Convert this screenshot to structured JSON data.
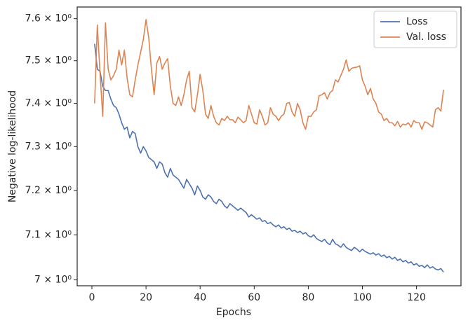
{
  "chart_data": {
    "type": "line",
    "xlabel": "Epochs",
    "ylabel": "Negative log-likelihood",
    "x": [
      1,
      2,
      3,
      4,
      5,
      6,
      7,
      8,
      9,
      10,
      11,
      12,
      13,
      14,
      15,
      16,
      17,
      18,
      19,
      20,
      21,
      22,
      23,
      24,
      25,
      26,
      27,
      28,
      29,
      30,
      31,
      32,
      33,
      34,
      35,
      36,
      37,
      38,
      39,
      40,
      41,
      42,
      43,
      44,
      45,
      46,
      47,
      48,
      49,
      50,
      51,
      52,
      53,
      54,
      55,
      56,
      57,
      58,
      59,
      60,
      61,
      62,
      63,
      64,
      65,
      66,
      67,
      68,
      69,
      70,
      71,
      72,
      73,
      74,
      75,
      76,
      77,
      78,
      79,
      80,
      81,
      82,
      83,
      84,
      85,
      86,
      87,
      88,
      89,
      90,
      91,
      92,
      93,
      94,
      95,
      96,
      97,
      98,
      99,
      100,
      101,
      102,
      103,
      104,
      105,
      106,
      107,
      108,
      109,
      110,
      111,
      112,
      113,
      114,
      115,
      116,
      117,
      118,
      119,
      120,
      121,
      122,
      123,
      124,
      125,
      126,
      127,
      128,
      129,
      130
    ],
    "series": [
      {
        "name": "Loss",
        "color": "#4c72b0",
        "values": [
          7.54,
          7.48,
          7.475,
          7.44,
          7.43,
          7.43,
          7.41,
          7.395,
          7.39,
          7.375,
          7.355,
          7.34,
          7.345,
          7.32,
          7.335,
          7.33,
          7.3,
          7.285,
          7.3,
          7.29,
          7.275,
          7.27,
          7.265,
          7.25,
          7.265,
          7.26,
          7.24,
          7.23,
          7.25,
          7.235,
          7.23,
          7.225,
          7.215,
          7.205,
          7.225,
          7.215,
          7.205,
          7.19,
          7.21,
          7.2,
          7.185,
          7.18,
          7.19,
          7.185,
          7.175,
          7.17,
          7.18,
          7.175,
          7.165,
          7.16,
          7.17,
          7.165,
          7.16,
          7.155,
          7.16,
          7.155,
          7.15,
          7.14,
          7.145,
          7.14,
          7.135,
          7.138,
          7.13,
          7.132,
          7.125,
          7.128,
          7.122,
          7.118,
          7.122,
          7.115,
          7.118,
          7.112,
          7.115,
          7.108,
          7.11,
          7.105,
          7.108,
          7.102,
          7.105,
          7.098,
          7.095,
          7.1,
          7.092,
          7.088,
          7.085,
          7.09,
          7.082,
          7.078,
          7.09,
          7.08,
          7.077,
          7.072,
          7.08,
          7.072,
          7.068,
          7.065,
          7.072,
          7.068,
          7.062,
          7.068,
          7.063,
          7.06,
          7.057,
          7.06,
          7.055,
          7.058,
          7.052,
          7.055,
          7.049,
          7.052,
          7.046,
          7.05,
          7.043,
          7.046,
          7.04,
          7.043,
          7.037,
          7.04,
          7.033,
          7.036,
          7.03,
          7.032,
          7.027,
          7.033,
          7.026,
          7.029,
          7.024,
          7.022,
          7.025,
          7.017
        ]
      },
      {
        "name": "Val. loss",
        "color": "#dd8452",
        "values": [
          7.4,
          7.585,
          7.47,
          7.37,
          7.59,
          7.48,
          7.455,
          7.465,
          7.48,
          7.525,
          7.49,
          7.525,
          7.46,
          7.42,
          7.415,
          7.455,
          7.49,
          7.52,
          7.55,
          7.598,
          7.555,
          7.48,
          7.42,
          7.495,
          7.51,
          7.48,
          7.495,
          7.505,
          7.44,
          7.4,
          7.395,
          7.415,
          7.395,
          7.42,
          7.455,
          7.475,
          7.39,
          7.38,
          7.42,
          7.468,
          7.43,
          7.375,
          7.365,
          7.395,
          7.37,
          7.355,
          7.35,
          7.365,
          7.36,
          7.37,
          7.362,
          7.362,
          7.355,
          7.368,
          7.362,
          7.355,
          7.36,
          7.395,
          7.375,
          7.355,
          7.352,
          7.385,
          7.37,
          7.35,
          7.355,
          7.39,
          7.375,
          7.37,
          7.36,
          7.37,
          7.375,
          7.4,
          7.402,
          7.38,
          7.37,
          7.4,
          7.385,
          7.355,
          7.34,
          7.37,
          7.37,
          7.38,
          7.385,
          7.418,
          7.42,
          7.425,
          7.41,
          7.425,
          7.43,
          7.455,
          7.45,
          7.465,
          7.48,
          7.502,
          7.475,
          7.482,
          7.484,
          7.485,
          7.488,
          7.455,
          7.44,
          7.42,
          7.435,
          7.41,
          7.4,
          7.38,
          7.375,
          7.36,
          7.365,
          7.355,
          7.355,
          7.348,
          7.358,
          7.345,
          7.352,
          7.35,
          7.355,
          7.345,
          7.36,
          7.355,
          7.355,
          7.34,
          7.357,
          7.355,
          7.35,
          7.345,
          7.385,
          7.39,
          7.382,
          7.432
        ]
      }
    ],
    "xlim": [
      -5.45,
      136.45
    ],
    "xticks": [
      0,
      20,
      40,
      60,
      80,
      100,
      120
    ],
    "ylim": [
      6.987,
      7.628
    ],
    "log_y": true,
    "yticks": [
      {
        "value": 7,
        "label": "7 × 10⁰"
      },
      {
        "value": 7.1,
        "label": "7.1 × 10⁰"
      },
      {
        "value": 7.2,
        "label": "7.2 × 10⁰"
      },
      {
        "value": 7.3,
        "label": "7.3 × 10⁰"
      },
      {
        "value": 7.4,
        "label": "7.4 × 10⁰"
      },
      {
        "value": 7.5,
        "label": "7.5 × 10⁰"
      },
      {
        "value": 7.6,
        "label": "7.6 × 10⁰"
      }
    ],
    "grid": false,
    "legend": "upper right"
  }
}
